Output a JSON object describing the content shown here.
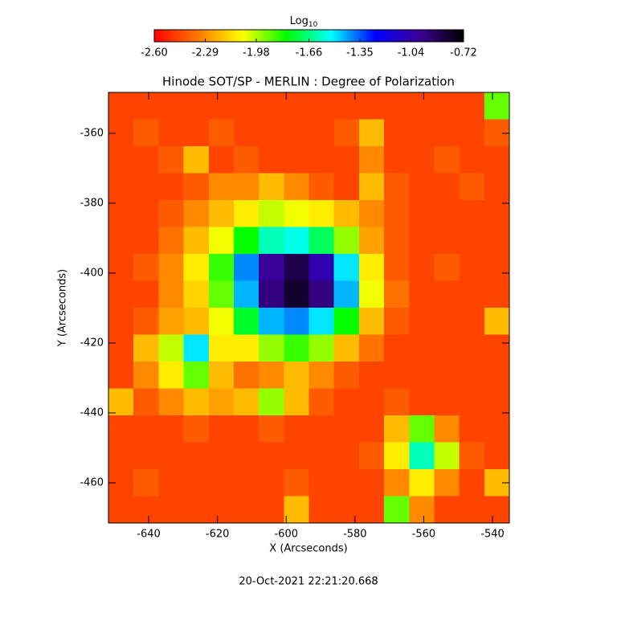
{
  "chart_data": {
    "type": "heatmap",
    "title": "Hinode SOT/SP - MERLIN : Degree of Polarization",
    "x_label": "X (Arcseconds)",
    "y_label": "Y (Arcseconds)",
    "footer": "20-Oct-2021 22:21:20.668",
    "colorbar_label": {
      "base": "Log",
      "subscript": "10"
    },
    "xlim": [
      -651.7,
      -535.1
    ],
    "ylim": [
      -471.5,
      -348.3
    ],
    "xticks": [
      -640,
      -620,
      -600,
      -580,
      -560,
      -540
    ],
    "yticks": [
      -360,
      -380,
      -400,
      -420,
      -440,
      -460
    ],
    "clim": [
      -2.6,
      -0.72
    ],
    "cticks": [
      {
        "value": -2.6,
        "label": "-2.60"
      },
      {
        "value": -2.29,
        "label": "-2.29"
      },
      {
        "value": -1.98,
        "label": "-1.98"
      },
      {
        "value": -1.66,
        "label": "-1.66"
      },
      {
        "value": -1.35,
        "label": "-1.35"
      },
      {
        "value": -1.04,
        "label": "-1.04"
      },
      {
        "value": -0.72,
        "label": "-0.72"
      }
    ],
    "colormap": [
      "#ff0000",
      "#ff7a00",
      "#ffff00",
      "#00ff00",
      "#00ffff",
      "#0000ff",
      "#3c0096",
      "#000000"
    ],
    "z": [
      [
        -2.45,
        -2.45,
        -2.45,
        -2.45,
        -2.45,
        -2.45,
        -2.45,
        -2.45,
        -2.45,
        -2.45,
        -2.45,
        -2.45,
        -2.45,
        -2.45,
        -2.45,
        -1.9
      ],
      [
        -2.45,
        -2.4,
        -2.45,
        -2.45,
        -2.4,
        -2.45,
        -2.45,
        -2.45,
        -2.45,
        -2.4,
        -2.2,
        -2.45,
        -2.45,
        -2.45,
        -2.45,
        -2.4
      ],
      [
        -2.45,
        -2.45,
        -2.4,
        -2.2,
        -2.45,
        -2.4,
        -2.45,
        -2.45,
        -2.45,
        -2.45,
        -2.3,
        -2.45,
        -2.45,
        -2.4,
        -2.45,
        -2.45
      ],
      [
        -2.45,
        -2.45,
        -2.45,
        -2.4,
        -2.3,
        -2.3,
        -2.2,
        -2.3,
        -2.4,
        -2.45,
        -2.2,
        -2.4,
        -2.45,
        -2.45,
        -2.4,
        -2.45
      ],
      [
        -2.45,
        -2.45,
        -2.4,
        -2.3,
        -2.2,
        -2.1,
        -2.0,
        -2.05,
        -2.1,
        -2.2,
        -2.3,
        -2.4,
        -2.45,
        -2.45,
        -2.45,
        -2.45
      ],
      [
        -2.45,
        -2.45,
        -2.35,
        -2.2,
        -2.05,
        -1.8,
        -1.6,
        -1.55,
        -1.7,
        -1.95,
        -2.25,
        -2.4,
        -2.45,
        -2.45,
        -2.45,
        -2.45
      ],
      [
        -2.45,
        -2.4,
        -2.3,
        -2.1,
        -1.85,
        -1.4,
        -1.0,
        -0.85,
        -1.05,
        -1.5,
        -2.1,
        -2.4,
        -2.45,
        -2.4,
        -2.45,
        -2.45
      ],
      [
        -2.45,
        -2.45,
        -2.3,
        -2.15,
        -1.9,
        -1.45,
        -0.95,
        -0.8,
        -0.95,
        -1.45,
        -2.05,
        -2.35,
        -2.45,
        -2.45,
        -2.45,
        -2.45
      ],
      [
        -2.45,
        -2.4,
        -2.25,
        -2.2,
        -2.05,
        -1.75,
        -1.45,
        -1.4,
        -1.5,
        -1.8,
        -2.2,
        -2.4,
        -2.45,
        -2.45,
        -2.45,
        -2.2
      ],
      [
        -2.45,
        -2.2,
        -2.0,
        -1.5,
        -2.1,
        -2.1,
        -1.95,
        -1.85,
        -1.95,
        -2.2,
        -2.35,
        -2.45,
        -2.45,
        -2.45,
        -2.45,
        -2.45
      ],
      [
        -2.45,
        -2.3,
        -2.1,
        -1.9,
        -2.2,
        -2.35,
        -2.3,
        -2.2,
        -2.3,
        -2.4,
        -2.45,
        -2.45,
        -2.45,
        -2.45,
        -2.45,
        -2.45
      ],
      [
        -2.2,
        -2.4,
        -2.3,
        -2.2,
        -2.25,
        -2.2,
        -1.95,
        -2.2,
        -2.4,
        -2.45,
        -2.45,
        -2.4,
        -2.45,
        -2.45,
        -2.45,
        -2.45
      ],
      [
        -2.45,
        -2.45,
        -2.45,
        -2.4,
        -2.45,
        -2.45,
        -2.4,
        -2.45,
        -2.45,
        -2.45,
        -2.45,
        -2.2,
        -1.9,
        -2.3,
        -2.45,
        -2.45
      ],
      [
        -2.45,
        -2.45,
        -2.45,
        -2.45,
        -2.45,
        -2.45,
        -2.45,
        -2.45,
        -2.45,
        -2.45,
        -2.4,
        -2.1,
        -1.6,
        -2.0,
        -2.4,
        -2.45
      ],
      [
        -2.45,
        -2.4,
        -2.45,
        -2.45,
        -2.45,
        -2.45,
        -2.45,
        -2.4,
        -2.45,
        -2.45,
        -2.45,
        -2.3,
        -2.1,
        -2.3,
        -2.45,
        -2.2
      ],
      [
        -2.45,
        -2.45,
        -2.45,
        -2.45,
        -2.45,
        -2.45,
        -2.45,
        -2.2,
        -2.45,
        -2.45,
        -2.45,
        -1.9,
        -2.3,
        -2.45,
        -2.45,
        -2.45
      ]
    ]
  }
}
